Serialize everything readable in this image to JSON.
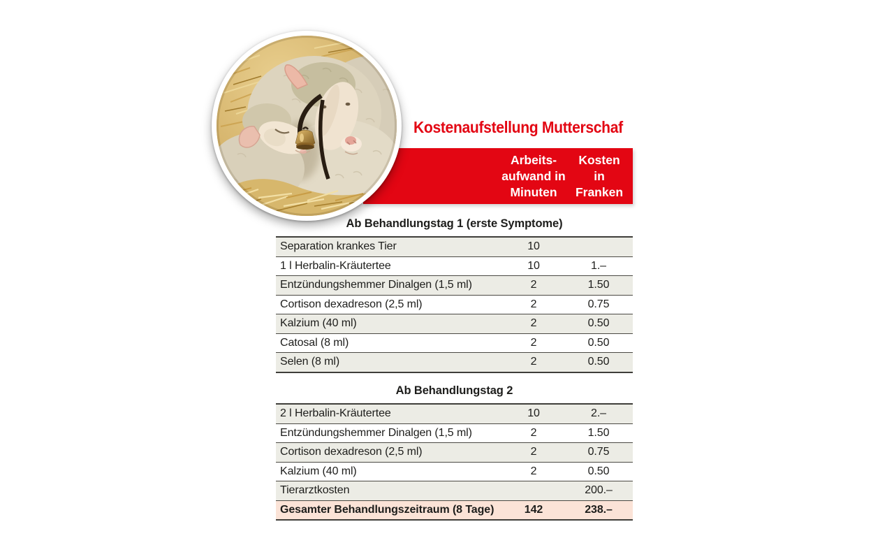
{
  "title": "Kostenaufstellung Mutterschaf",
  "photo": {
    "name": "mother-sheep-with-lamb-photo"
  },
  "table_header": {
    "minutes_label": "Arbeits-\naufwand in\nMinuten",
    "cost_label": "Kosten\nin\nFranken"
  },
  "sections": [
    {
      "heading": "Ab Behandlungstag 1 (erste Symptome)",
      "rows": [
        {
          "label": "Separation krankes Tier",
          "minutes": "10",
          "cost": ""
        },
        {
          "label": "1 l Herbalin-Kräutertee",
          "minutes": "10",
          "cost": "1.–"
        },
        {
          "label": "Entzündungshemmer Dinalgen (1,5 ml)",
          "minutes": "2",
          "cost": "1.50"
        },
        {
          "label": "Cortison dexadreson (2,5 ml)",
          "minutes": "2",
          "cost": "0.75"
        },
        {
          "label": "Kalzium (40 ml)",
          "minutes": "2",
          "cost": "0.50"
        },
        {
          "label": "Catosal (8 ml)",
          "minutes": "2",
          "cost": "0.50"
        },
        {
          "label": "Selen (8 ml)",
          "minutes": "2",
          "cost": "0.50"
        }
      ]
    },
    {
      "heading": "Ab Behandlungstag 2",
      "rows": [
        {
          "label": "2 l Herbalin-Kräutertee",
          "minutes": "10",
          "cost": "2.–"
        },
        {
          "label": "Entzündungshemmer Dinalgen (1,5 ml)",
          "minutes": "2",
          "cost": "1.50"
        },
        {
          "label": "Cortison dexadreson (2,5 ml)",
          "minutes": "2",
          "cost": "0.75"
        },
        {
          "label": "Kalzium (40 ml)",
          "minutes": "2",
          "cost": "0.50"
        },
        {
          "label": "Tierarztkosten",
          "minutes": "",
          "cost": "200.–"
        },
        {
          "label": "Gesamter Behandlungszeitraum (8 Tage)",
          "minutes": "142",
          "cost": "238.–",
          "total": true
        }
      ]
    }
  ],
  "colors": {
    "accent_red": "#e30613",
    "row_alt": "#ecece5",
    "total_row": "#fbe3d7",
    "rule": "#3f3e3a",
    "text": "#1d1d1b"
  }
}
